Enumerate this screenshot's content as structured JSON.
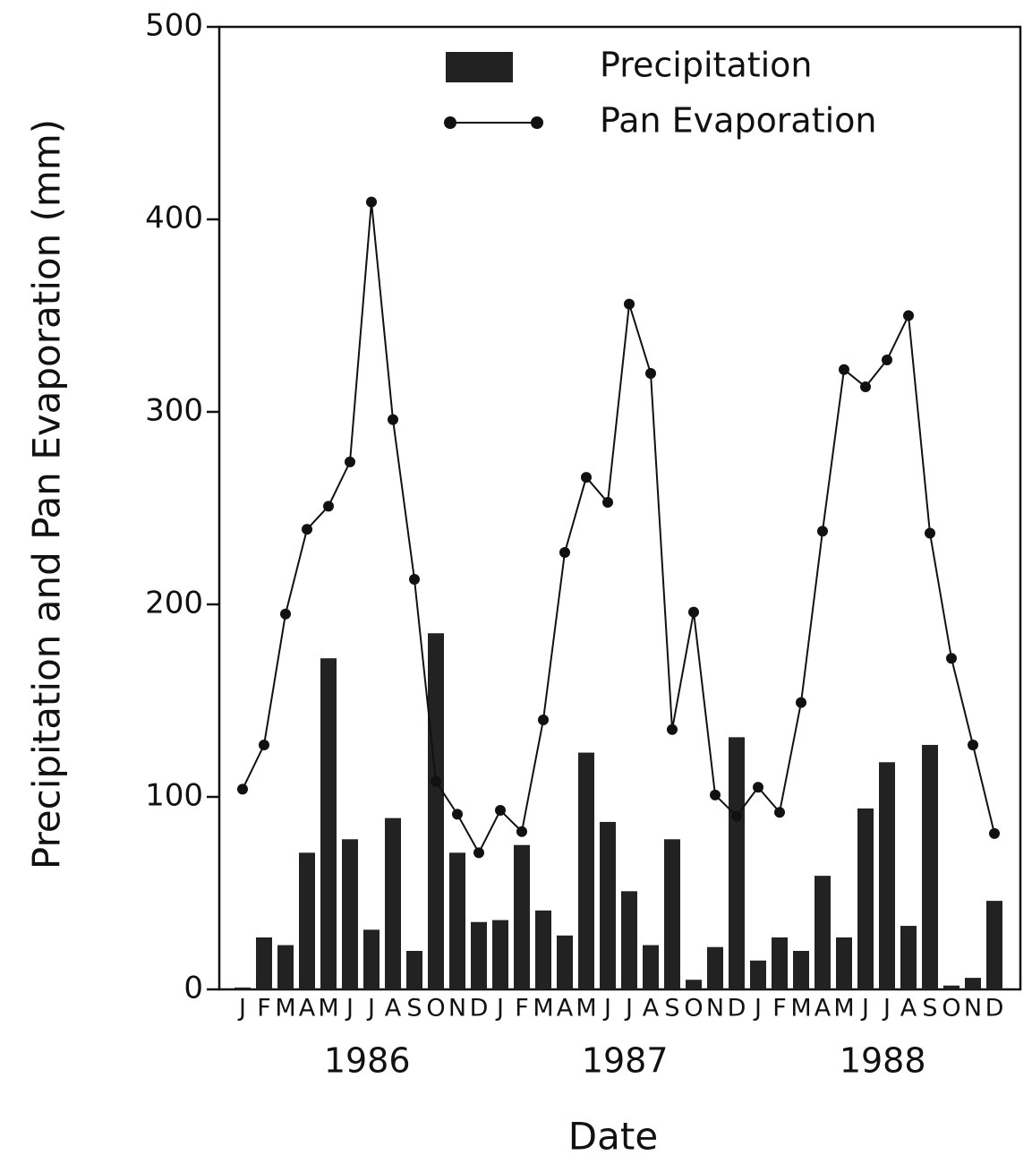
{
  "chart_data": {
    "type": "bar_line",
    "y_label": "Precipitation and Pan Evaporation (mm)",
    "x_label": "Date",
    "categories": [
      "J",
      "F",
      "M",
      "A",
      "M",
      "J",
      "J",
      "A",
      "S",
      "O",
      "N",
      "D",
      "J",
      "F",
      "M",
      "A",
      "M",
      "J",
      "J",
      "A",
      "S",
      "O",
      "N",
      "D",
      "J",
      "F",
      "M",
      "A",
      "M",
      "J",
      "J",
      "A",
      "S",
      "O",
      "N",
      "D"
    ],
    "year_labels": [
      "1986",
      "1987",
      "1988"
    ],
    "series": [
      {
        "name": "Precipitation",
        "type": "bar",
        "color": "#222222",
        "values": [
          1,
          27,
          23,
          71,
          172,
          78,
          31,
          89,
          20,
          185,
          71,
          35,
          36,
          75,
          41,
          28,
          123,
          87,
          51,
          23,
          78,
          5,
          22,
          131,
          15,
          27,
          20,
          59,
          27,
          94,
          118,
          33,
          127,
          2,
          6,
          46
        ]
      },
      {
        "name": "Pan Evaporation",
        "type": "line",
        "color": "#111111",
        "values": [
          104,
          127,
          195,
          239,
          251,
          274,
          409,
          296,
          213,
          108,
          91,
          71,
          93,
          82,
          140,
          227,
          266,
          253,
          356,
          320,
          135,
          196,
          101,
          90,
          105,
          92,
          149,
          238,
          322,
          313,
          327,
          350,
          237,
          172,
          127,
          81
        ]
      }
    ],
    "ylim": [
      0,
      500
    ],
    "yticks": [
      0,
      100,
      200,
      300,
      400,
      500
    ]
  }
}
